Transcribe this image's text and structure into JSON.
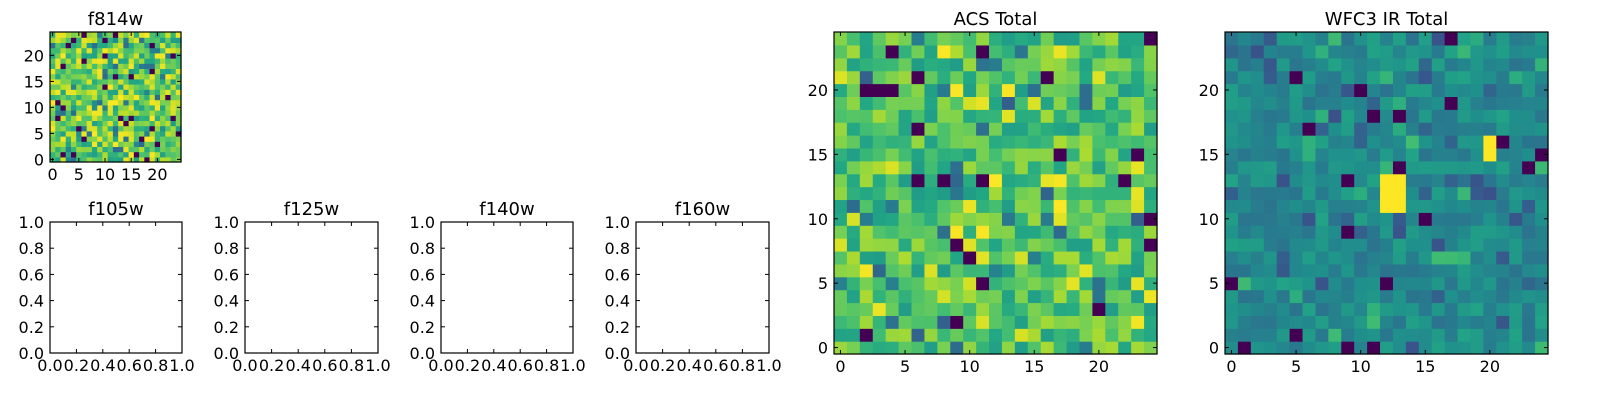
{
  "chart_data": [
    {
      "type": "heatmap",
      "title": "f814w",
      "xlabel": "",
      "ylabel": "",
      "grid_size": 25,
      "colormap": "viridis",
      "xticks": [
        "0",
        "5",
        "10",
        "15",
        "20"
      ],
      "yticks": [
        "0",
        "5",
        "10",
        "15",
        "20"
      ],
      "pixels": "random noise image, 25x25 pixels (values not individually readable)"
    },
    {
      "type": "heatmap",
      "title": "f105w",
      "xlabel": "",
      "ylabel": "",
      "empty": true,
      "xlim": [
        0.0,
        1.0
      ],
      "ylim": [
        0.0,
        1.0
      ],
      "xticks": [
        "0.0",
        "0.2",
        "0.4",
        "0.6",
        "0.8",
        "1.0"
      ],
      "yticks": [
        "0.0",
        "0.2",
        "0.4",
        "0.6",
        "0.8",
        "1.0"
      ]
    },
    {
      "type": "heatmap",
      "title": "f125w",
      "xlabel": "",
      "ylabel": "",
      "empty": true,
      "xlim": [
        0.0,
        1.0
      ],
      "ylim": [
        0.0,
        1.0
      ],
      "xticks": [
        "0.0",
        "0.2",
        "0.4",
        "0.6",
        "0.8",
        "1.0"
      ],
      "yticks": [
        "0.0",
        "0.2",
        "0.4",
        "0.6",
        "0.8",
        "1.0"
      ]
    },
    {
      "type": "heatmap",
      "title": "f140w",
      "xlabel": "",
      "ylabel": "",
      "empty": true,
      "xlim": [
        0.0,
        1.0
      ],
      "ylim": [
        0.0,
        1.0
      ],
      "xticks": [
        "0.0",
        "0.2",
        "0.4",
        "0.6",
        "0.8",
        "1.0"
      ],
      "yticks": [
        "0.0",
        "0.2",
        "0.4",
        "0.6",
        "0.8",
        "1.0"
      ]
    },
    {
      "type": "heatmap",
      "title": "f160w",
      "xlabel": "",
      "ylabel": "",
      "empty": true,
      "xlim": [
        0.0,
        1.0
      ],
      "ylim": [
        0.0,
        1.0
      ],
      "xticks": [
        "0.0",
        "0.2",
        "0.4",
        "0.6",
        "0.8",
        "1.0"
      ],
      "yticks": [
        "0.0",
        "0.2",
        "0.4",
        "0.6",
        "0.8",
        "1.0"
      ]
    },
    {
      "type": "heatmap",
      "title": "ACS Total",
      "xlabel": "",
      "ylabel": "",
      "grid_size": 25,
      "colormap": "viridis",
      "xticks": [
        "0",
        "5",
        "10",
        "15",
        "20"
      ],
      "yticks": [
        "0",
        "5",
        "10",
        "15",
        "20"
      ],
      "pixels": "random noise image, 25x25 pixels, mostly green-yellow values"
    },
    {
      "type": "heatmap",
      "title": "WFC3 IR Total",
      "xlabel": "",
      "ylabel": "",
      "grid_size": 25,
      "colormap": "viridis",
      "xticks": [
        "0",
        "5",
        "10",
        "15",
        "20"
      ],
      "yticks": [
        "0",
        "5",
        "10",
        "15",
        "20"
      ],
      "pixels": "random noise image, 25x25 pixels, mostly teal values with bright source near (12,12) and (20,15)",
      "bright_spots": [
        {
          "x": 12,
          "y": 11
        },
        {
          "x": 13,
          "y": 11
        },
        {
          "x": 12,
          "y": 12
        },
        {
          "x": 13,
          "y": 12
        },
        {
          "x": 12,
          "y": 13
        },
        {
          "x": 13,
          "y": 13
        },
        {
          "x": 20,
          "y": 15
        },
        {
          "x": 20,
          "y": 16
        }
      ]
    }
  ],
  "colors": {
    "viridis": [
      "#440154",
      "#3b528b",
      "#21918c",
      "#5ec962",
      "#fde725"
    ]
  }
}
